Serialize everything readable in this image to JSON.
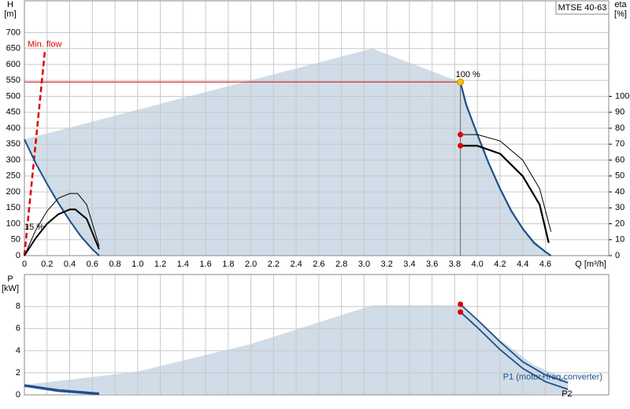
{
  "chart_data": [
    {
      "type": "line",
      "title": "MTSE 40-63",
      "y_label": "H",
      "y_unit": "[m]",
      "y2_label": "eta",
      "y2_unit": "[%]",
      "x_label": "Q [m³/h]",
      "xlim": [
        0,
        5.16
      ],
      "ylim": [
        0,
        800
      ],
      "y2lim": [
        0,
        160
      ],
      "grid": true,
      "xticks": [
        0,
        0.2,
        0.4,
        0.6,
        0.8,
        {
          "value": 1,
          "label": "1.0"
        },
        1.2,
        1.4,
        1.6,
        1.8,
        {
          "value": 2,
          "label": "2.0"
        },
        2.2,
        2.4,
        2.6,
        2.8,
        {
          "value": 3,
          "label": "3.0"
        },
        3.2,
        3.4,
        3.6,
        3.8,
        {
          "value": 4,
          "label": "4.0"
        },
        4.2,
        4.4,
        4.6
      ],
      "yticks": [
        0,
        50,
        100,
        150,
        200,
        250,
        300,
        350,
        400,
        450,
        500,
        550,
        600,
        650,
        700
      ],
      "y2ticks": [
        0,
        10,
        20,
        30,
        40,
        50,
        60,
        70,
        80,
        90,
        100
      ],
      "area": {
        "color": "#d0dce7",
        "x": [
          0,
          3.07,
          3.85,
          4.0,
          4.2,
          4.4,
          4.6,
          4.65,
          0.66,
          0.5,
          0.3,
          0.1,
          0
        ],
        "values": [
          365,
          650,
          545,
          380,
          210,
          85,
          12,
          0,
          0,
          60,
          165,
          290,
          365
        ]
      },
      "series": [
        {
          "label": "100 %",
          "color": "#1d4f8c",
          "width": 2.2,
          "x": [
            3.85,
            3.9,
            4.0,
            4.1,
            4.2,
            4.3,
            4.4,
            4.5,
            4.6,
            4.65
          ],
          "values": [
            545,
            475,
            380,
            290,
            210,
            140,
            85,
            40,
            12,
            0
          ]
        },
        {
          "label": "15 %",
          "color": "#1d4f8c",
          "width": 2,
          "x": [
            0,
            0.1,
            0.2,
            0.3,
            0.4,
            0.5,
            0.6,
            0.66
          ],
          "values": [
            365,
            290,
            225,
            165,
            110,
            60,
            20,
            0
          ]
        },
        {
          "axis": "y2",
          "color": "#000000",
          "width": 1,
          "x": [
            3.85,
            4.0,
            4.2,
            4.4,
            4.55,
            4.65
          ],
          "values": [
            76,
            76,
            72,
            60,
            42,
            15
          ]
        },
        {
          "axis": "y2",
          "color": "#000000",
          "width": 2.2,
          "x": [
            3.85,
            4.0,
            4.2,
            4.4,
            4.55,
            4.63
          ],
          "values": [
            69,
            69,
            64,
            50,
            32,
            8
          ]
        },
        {
          "axis": "y2",
          "color": "#000000",
          "width": 1,
          "x": [
            0,
            0.1,
            0.2,
            0.3,
            0.4,
            0.47,
            0.55,
            0.66
          ],
          "values": [
            0,
            16,
            28,
            36,
            39,
            39,
            32,
            6
          ]
        },
        {
          "axis": "y2",
          "color": "#000000",
          "width": 2,
          "x": [
            0,
            0.1,
            0.2,
            0.3,
            0.4,
            0.45,
            0.55,
            0.66
          ],
          "values": [
            0,
            11,
            20,
            26,
            29,
            29,
            23,
            4
          ]
        }
      ],
      "min_flow": {
        "label": "Min. flow",
        "color": "#e00000",
        "x": [
          0,
          0.18
        ],
        "values": [
          0,
          640
        ]
      },
      "duty_point": {
        "x": 3.85,
        "value": 545,
        "color": "#f5c400",
        "line_color": "#d00000"
      },
      "eta_points": {
        "color": "#e00000",
        "x": [
          3.85,
          3.85
        ],
        "values": [
          76,
          69
        ]
      }
    },
    {
      "type": "line",
      "y_label": "P",
      "y_unit": "[kW]",
      "xlim": [
        0,
        5.16
      ],
      "ylim": [
        0,
        10.9
      ],
      "grid": true,
      "yticks": [
        0,
        2,
        4,
        6,
        8
      ],
      "area": {
        "color": "#d0dce7",
        "x": [
          0,
          1,
          2,
          3.07,
          3.85,
          4.0,
          4.2,
          4.5,
          4.8,
          4.8,
          3.85,
          0.66,
          0
        ],
        "values": [
          0.9,
          2.1,
          4.6,
          8.1,
          8.1,
          6.9,
          5.0,
          2.7,
          1.4,
          0.1,
          0,
          0.1,
          0.7
        ]
      },
      "series": [
        {
          "name": "P1 (motor+freq.converter)",
          "color": "#1d4f8c",
          "width": 1.8,
          "x": [
            3.85,
            4.0,
            4.2,
            4.4,
            4.6,
            4.8
          ],
          "values": [
            8.2,
            6.8,
            4.8,
            3.0,
            1.8,
            1.1
          ]
        },
        {
          "name": "P2",
          "color": "#1d4f8c",
          "width": 1.8,
          "x": [
            3.85,
            4.0,
            4.2,
            4.4,
            4.6,
            4.8
          ],
          "values": [
            7.5,
            6.1,
            4.1,
            2.4,
            1.2,
            0.5
          ]
        },
        {
          "color": "#1d4f8c",
          "width": 1.8,
          "x": [
            0,
            0.3,
            0.66
          ],
          "values": [
            0.9,
            0.45,
            0.15
          ]
        },
        {
          "color": "#1d4f8c",
          "width": 1.8,
          "x": [
            0,
            0.3,
            0.66
          ],
          "values": [
            0.8,
            0.32,
            0.05
          ]
        }
      ],
      "points": {
        "color": "#e00000",
        "x": [
          3.85,
          3.85
        ],
        "values": [
          8.2,
          7.5
        ]
      }
    }
  ]
}
